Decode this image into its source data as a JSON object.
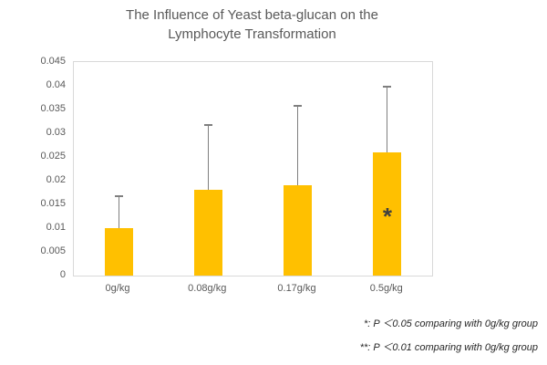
{
  "title": {
    "line1": "The Influence of Yeast beta-glucan on the",
    "line2": "Lymphocyte Transformation"
  },
  "footnotes": {
    "note1": "*: P ＜0.05 comparing with 0g/kg group",
    "note2": "**: P ＜0.01 comparing with 0g/kg group"
  },
  "colors": {
    "bar": "#FFC000",
    "error_bar": "#7F7F7F",
    "axis_text": "#595959",
    "title_text": "#595959",
    "plot_border": "#D9D9D9",
    "annotation": "#404040",
    "footnote_text": "#262626"
  },
  "chart_data": {
    "type": "bar",
    "title": "The Influence of Yeast beta-glucan on the Lymphocyte Transformation",
    "categories": [
      "0g/kg",
      "0.08g/kg",
      "0.17g/kg",
      "0.5g/kg"
    ],
    "values": [
      0.01,
      0.018,
      0.019,
      0.026
    ],
    "error_plus": [
      0.007,
      0.014,
      0.017,
      0.014
    ],
    "annotations": [
      "",
      "",
      "",
      "*"
    ],
    "xlabel": "",
    "ylabel": "",
    "ylim": [
      0,
      0.045
    ],
    "ytick_step": 0.005,
    "yticks": [
      "0",
      "0.005",
      "0.01",
      "0.015",
      "0.02",
      "0.025",
      "0.03",
      "0.035",
      "0.04",
      "0.045"
    ],
    "grid": false,
    "legend_position": "none",
    "bar_color": "#FFC000"
  }
}
